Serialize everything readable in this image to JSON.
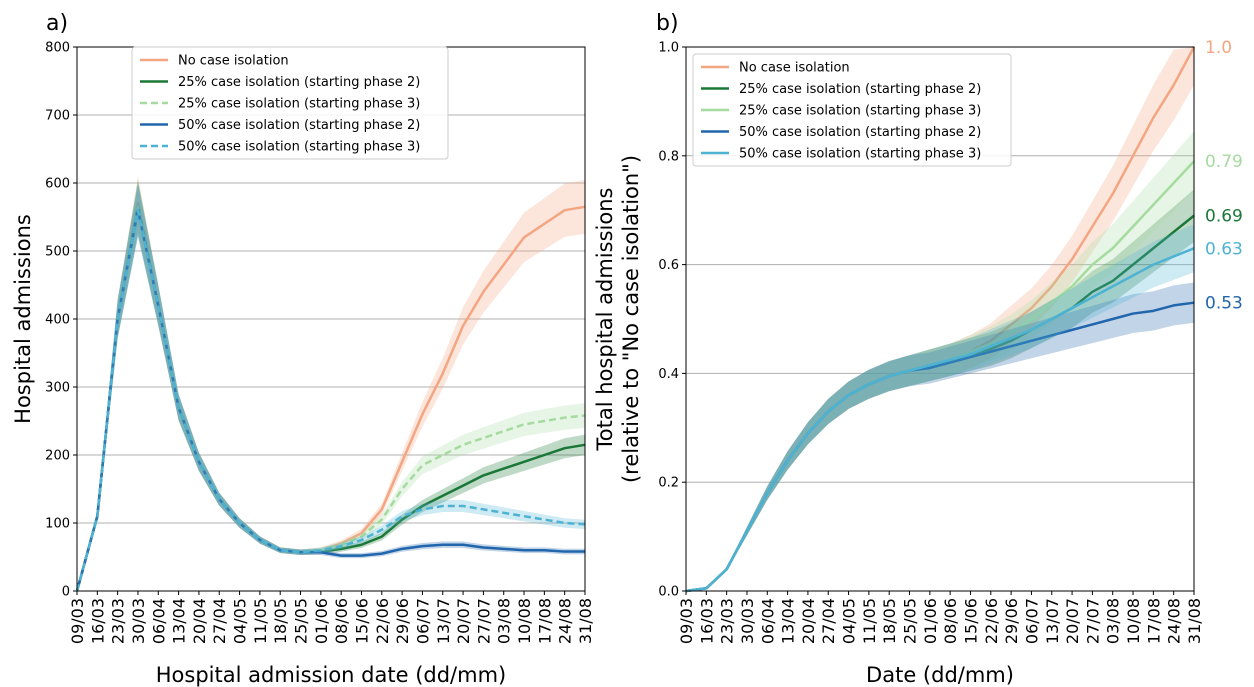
{
  "colors": {
    "no_isolation": "#f4a582",
    "p25_phase2": "#1a7837",
    "p25_phase3": "#a6dba0",
    "p50_phase2": "#2166ac",
    "p50_phase3": "#4eb3d3"
  },
  "chart_data": [
    {
      "type": "line",
      "panel_label": "a)",
      "xlabel": "Hospital admission date (dd/mm)",
      "ylabel": "Hospital admissions",
      "ylim": [
        0,
        800
      ],
      "yticks": [
        "0",
        "100",
        "200",
        "300",
        "400",
        "500",
        "600",
        "700",
        "800"
      ],
      "x_tick_labels": [
        "09/03",
        "16/03",
        "23/03",
        "30/03",
        "06/04",
        "13/04",
        "20/04",
        "27/04",
        "04/05",
        "11/05",
        "18/05",
        "25/05",
        "01/06",
        "08/06",
        "15/06",
        "22/06",
        "29/06",
        "06/07",
        "13/07",
        "20/07",
        "27/07",
        "03/08",
        "10/08",
        "17/08",
        "24/08",
        "31/08"
      ],
      "grid": "horizontal",
      "legend_position": "upper-center",
      "x": [
        "09/03",
        "16/03",
        "23/03",
        "30/03",
        "06/04",
        "13/04",
        "20/04",
        "27/04",
        "04/05",
        "11/05",
        "18/05",
        "25/05",
        "01/06",
        "08/06",
        "15/06",
        "22/06",
        "29/06",
        "06/07",
        "13/07",
        "20/07",
        "27/07",
        "03/08",
        "10/08",
        "17/08",
        "24/08",
        "31/08"
      ],
      "series": [
        {
          "name": "No case isolation",
          "style": "solid",
          "color_key": "no_isolation",
          "values": [
            0,
            110,
            400,
            570,
            420,
            270,
            190,
            135,
            100,
            75,
            60,
            57,
            60,
            70,
            85,
            120,
            190,
            260,
            320,
            390,
            440,
            480,
            520,
            540,
            560,
            565
          ]
        },
        {
          "name": "25% case isolation (starting phase 2)",
          "style": "solid",
          "color_key": "p25_phase2",
          "values": [
            0,
            110,
            400,
            565,
            420,
            270,
            190,
            135,
            100,
            75,
            60,
            57,
            58,
            62,
            68,
            80,
            105,
            125,
            140,
            155,
            170,
            180,
            190,
            200,
            210,
            215
          ]
        },
        {
          "name": "25% case isolation (starting phase 3)",
          "style": "dashed",
          "color_key": "p25_phase3",
          "values": [
            0,
            110,
            400,
            565,
            420,
            270,
            190,
            135,
            100,
            75,
            60,
            57,
            60,
            68,
            80,
            105,
            150,
            185,
            200,
            215,
            225,
            235,
            245,
            250,
            255,
            258
          ]
        },
        {
          "name": "50% case isolation (starting phase 2)",
          "style": "solid",
          "color_key": "p50_phase2",
          "values": [
            0,
            110,
            400,
            560,
            420,
            270,
            190,
            135,
            100,
            75,
            60,
            57,
            57,
            52,
            52,
            55,
            62,
            66,
            68,
            68,
            64,
            62,
            60,
            60,
            58,
            58
          ]
        },
        {
          "name": "50% case isolation (starting phase 3)",
          "style": "dashed",
          "color_key": "p50_phase3",
          "values": [
            0,
            110,
            400,
            560,
            420,
            270,
            190,
            135,
            100,
            75,
            60,
            57,
            60,
            66,
            75,
            90,
            110,
            120,
            125,
            125,
            120,
            115,
            110,
            105,
            100,
            98
          ]
        }
      ]
    },
    {
      "type": "line",
      "panel_label": "b)",
      "xlabel": "Date (dd/mm)",
      "ylabel": "Total hospital admissions",
      "ylabel2": "(relative to \"No case isolation\")",
      "ylim": [
        0,
        1
      ],
      "yticks": [
        "0.0",
        "0.2",
        "0.4",
        "0.6",
        "0.8",
        "1.0"
      ],
      "x_tick_labels": [
        "09/03",
        "16/03",
        "23/03",
        "30/03",
        "06/04",
        "13/04",
        "20/04",
        "27/04",
        "04/05",
        "11/05",
        "18/05",
        "25/05",
        "01/06",
        "08/06",
        "15/06",
        "22/06",
        "29/06",
        "06/07",
        "13/07",
        "20/07",
        "27/07",
        "03/08",
        "10/08",
        "17/08",
        "24/08",
        "31/08"
      ],
      "grid": "horizontal",
      "legend_position": "upper-left",
      "x": [
        "09/03",
        "16/03",
        "23/03",
        "30/03",
        "06/04",
        "13/04",
        "20/04",
        "27/04",
        "04/05",
        "11/05",
        "18/05",
        "25/05",
        "01/06",
        "08/06",
        "15/06",
        "22/06",
        "29/06",
        "06/07",
        "13/07",
        "20/07",
        "27/07",
        "03/08",
        "10/08",
        "17/08",
        "24/08",
        "31/08"
      ],
      "series": [
        {
          "name": "No case isolation",
          "style": "solid",
          "color_key": "no_isolation",
          "end_label": "1.0",
          "values": [
            0,
            0.005,
            0.04,
            0.11,
            0.18,
            0.24,
            0.29,
            0.33,
            0.36,
            0.38,
            0.395,
            0.405,
            0.415,
            0.425,
            0.44,
            0.46,
            0.49,
            0.52,
            0.56,
            0.61,
            0.67,
            0.73,
            0.8,
            0.87,
            0.93,
            1.0
          ]
        },
        {
          "name": "25% case isolation (starting phase 2)",
          "style": "solid",
          "color_key": "p25_phase2",
          "end_label": "0.69",
          "values": [
            0,
            0.005,
            0.04,
            0.11,
            0.18,
            0.24,
            0.29,
            0.33,
            0.36,
            0.38,
            0.395,
            0.405,
            0.415,
            0.425,
            0.435,
            0.445,
            0.46,
            0.48,
            0.5,
            0.52,
            0.55,
            0.57,
            0.6,
            0.63,
            0.66,
            0.69
          ]
        },
        {
          "name": "25% case isolation (starting phase 3)",
          "style": "solid",
          "color_key": "p25_phase3",
          "end_label": "0.79",
          "values": [
            0,
            0.005,
            0.04,
            0.11,
            0.18,
            0.24,
            0.29,
            0.33,
            0.36,
            0.38,
            0.395,
            0.405,
            0.415,
            0.425,
            0.44,
            0.455,
            0.475,
            0.5,
            0.53,
            0.56,
            0.6,
            0.63,
            0.67,
            0.71,
            0.75,
            0.79
          ]
        },
        {
          "name": "50% case isolation (starting phase 2)",
          "style": "solid",
          "color_key": "p50_phase2",
          "end_label": "0.53",
          "values": [
            0,
            0.005,
            0.04,
            0.11,
            0.18,
            0.24,
            0.29,
            0.33,
            0.36,
            0.38,
            0.395,
            0.405,
            0.41,
            0.42,
            0.43,
            0.44,
            0.45,
            0.46,
            0.47,
            0.48,
            0.49,
            0.5,
            0.51,
            0.515,
            0.525,
            0.53
          ]
        },
        {
          "name": "50% case isolation (starting phase 3)",
          "style": "solid",
          "color_key": "p50_phase3",
          "end_label": "0.63",
          "values": [
            0,
            0.005,
            0.04,
            0.11,
            0.18,
            0.24,
            0.29,
            0.33,
            0.36,
            0.38,
            0.395,
            0.405,
            0.415,
            0.425,
            0.435,
            0.45,
            0.465,
            0.48,
            0.5,
            0.52,
            0.54,
            0.56,
            0.58,
            0.6,
            0.615,
            0.63
          ]
        }
      ]
    }
  ]
}
